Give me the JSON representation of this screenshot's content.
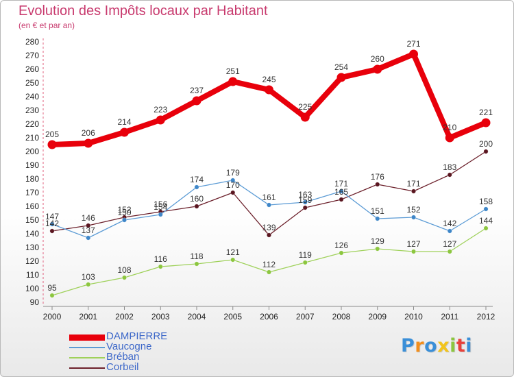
{
  "title": "Evolution des Impôts locaux par Habitant",
  "subtitle": "(en € et par an)",
  "brand": {
    "text": "Proxiti",
    "letter_colors": [
      "#3a8fd8",
      "#f28e1c",
      "#3a8fd8",
      "#f2c41c",
      "#8cc63f",
      "#e8413c",
      "#3a8fd8"
    ]
  },
  "chart_data": {
    "type": "line",
    "title": "Evolution des Impôts locaux par Habitant",
    "subtitle": "(en € et par an)",
    "xlabel": "",
    "ylabel": "",
    "x": [
      "2000",
      "2001",
      "2002",
      "2003",
      "2004",
      "2005",
      "2006",
      "2007",
      "2008",
      "2009",
      "2010",
      "2011",
      "2012"
    ],
    "ylim": [
      90,
      280
    ],
    "yticks": [
      90,
      100,
      110,
      120,
      130,
      140,
      150,
      160,
      170,
      180,
      190,
      200,
      210,
      220,
      230,
      240,
      250,
      260,
      270,
      280
    ],
    "grid": false,
    "legend_position": "bottom-left",
    "series": [
      {
        "name": "DAMPIERRE",
        "color": "#e8000b",
        "values": [
          205,
          206,
          214,
          223,
          237,
          251,
          245,
          225,
          254,
          260,
          271,
          210,
          221
        ]
      },
      {
        "name": "Vaucogne",
        "color": "#5b9bd5",
        "values": [
          147,
          137,
          150,
          154,
          174,
          179,
          161,
          163,
          171,
          151,
          152,
          142,
          158
        ]
      },
      {
        "name": "Bréban",
        "color": "#9fd15a",
        "values": [
          95,
          103,
          108,
          116,
          118,
          121,
          112,
          119,
          126,
          129,
          127,
          127,
          144
        ]
      },
      {
        "name": "Corbeil",
        "color": "#6b1f2a",
        "values": [
          142,
          146,
          152,
          156,
          160,
          170,
          139,
          159,
          165,
          176,
          171,
          183,
          200
        ]
      }
    ]
  }
}
